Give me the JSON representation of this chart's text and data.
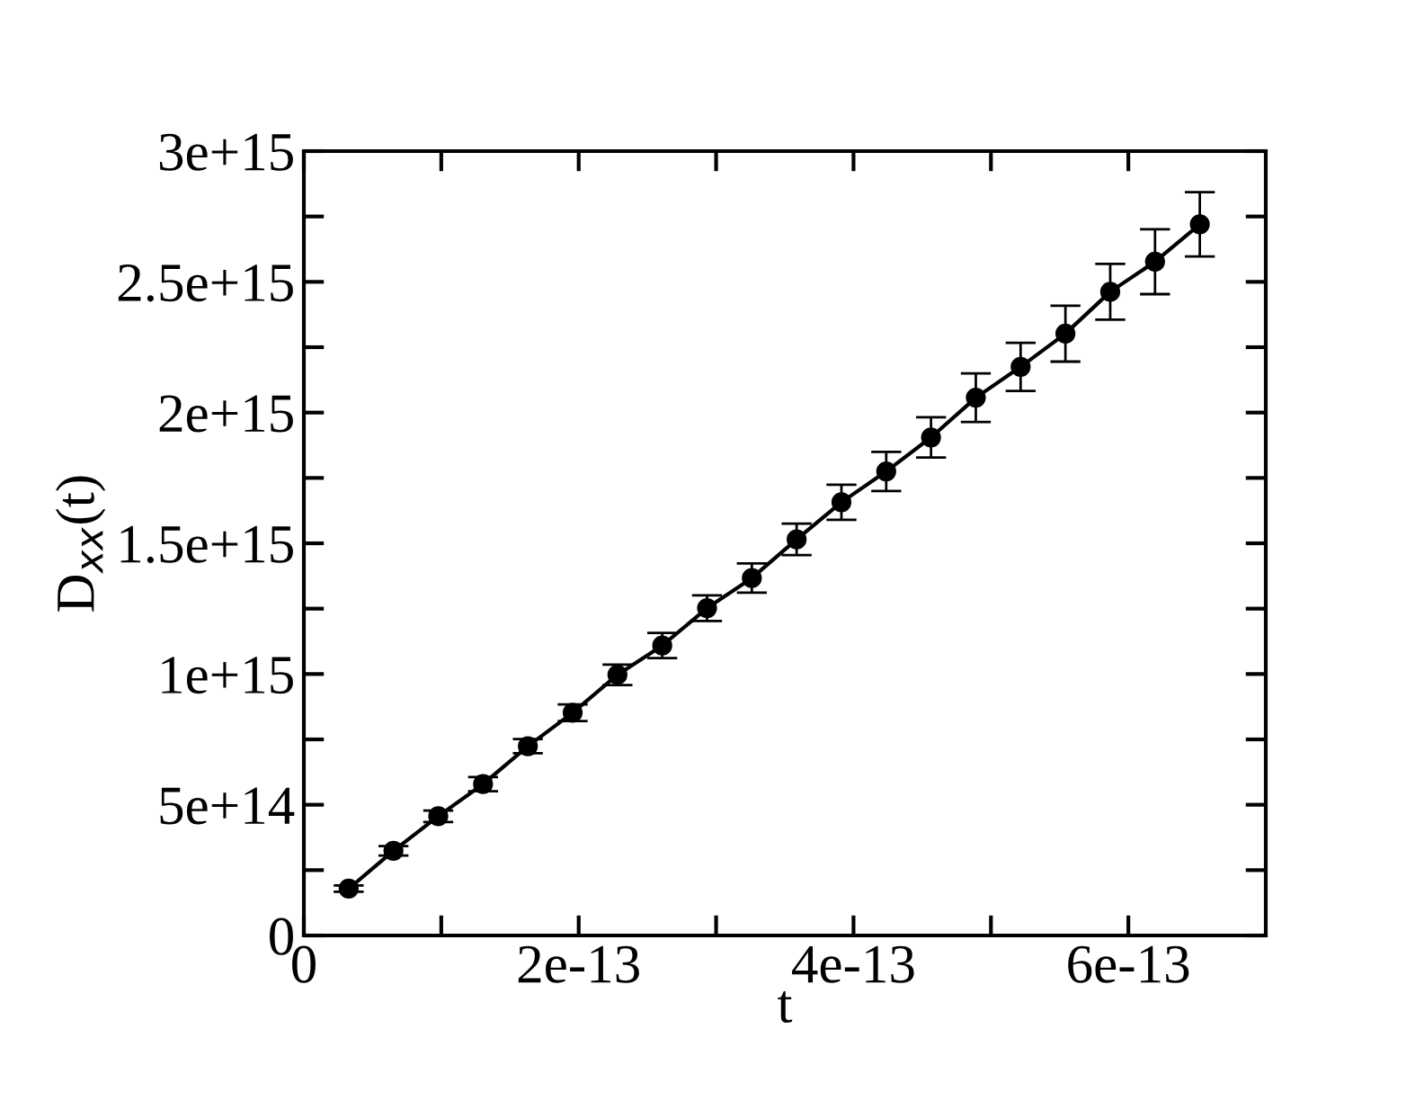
{
  "chart_data": {
    "type": "line",
    "xlabel": "t",
    "ylabel": "D$_{xx}$(t)",
    "x": [
      3.26e-14,
      6.52e-14,
      9.78e-14,
      1.304e-13,
      1.63e-13,
      1.956e-13,
      2.282e-13,
      2.608e-13,
      2.934e-13,
      3.26e-13,
      3.586e-13,
      3.912e-13,
      4.238e-13,
      4.564e-13,
      4.89e-13,
      5.216e-13,
      5.542e-13,
      5.868e-13,
      6.194e-13,
      6.52e-13
    ],
    "series": [
      {
        "color": "#000000",
        "values": [
          179000000000000.0,
          324000000000000.0,
          456000000000000.0,
          579000000000000.0,
          724000000000000.0,
          852000000000000.0,
          997000000000000.0,
          1109000000000000.0,
          1252000000000000.0,
          1367000000000000.0,
          1515000000000000.0,
          1657000000000000.0,
          1775000000000000.0,
          1905000000000000.0,
          2057000000000000.0,
          2175000000000000.0,
          2302000000000000.0,
          2462000000000000.0,
          2577000000000000.0,
          2720000000000000.0
        ],
        "errors": [
          12000000000000.0,
          18000000000000.0,
          22000000000000.0,
          27000000000000.0,
          27000000000000.0,
          32000000000000.0,
          39000000000000.0,
          48000000000000.0,
          49000000000000.0,
          56000000000000.0,
          60000000000000.0,
          67000000000000.0,
          75000000000000.0,
          77000000000000.0,
          93000000000000.0,
          92000000000000.0,
          107000000000000.0,
          107000000000000.0,
          124000000000000.0,
          123000000000000.0
        ]
      }
    ],
    "xlim": [
      0,
      7e-13
    ],
    "xticks": [
      {
        "value": 0,
        "label": "0"
      },
      {
        "value": 1e-13,
        "label": null
      },
      {
        "value": 2e-13,
        "label": "2e-13"
      },
      {
        "value": 3e-13,
        "label": null
      },
      {
        "value": 4e-13,
        "label": "4e-13"
      },
      {
        "value": 5e-13,
        "label": null
      },
      {
        "value": 6e-13,
        "label": "6e-13"
      }
    ],
    "ylim": [
      0,
      3000000000000000.0
    ],
    "yticks": [
      {
        "value": 0,
        "label": "0"
      },
      {
        "value": 250000000000000.0,
        "label": null
      },
      {
        "value": 500000000000000.0,
        "label": "5e+14"
      },
      {
        "value": 750000000000000.0,
        "label": null
      },
      {
        "value": 1000000000000000.0,
        "label": "1e+15"
      },
      {
        "value": 1250000000000000.0,
        "label": null
      },
      {
        "value": 1500000000000000.0,
        "label": "1.5e+15"
      },
      {
        "value": 1750000000000000.0,
        "label": null
      },
      {
        "value": 2000000000000000.0,
        "label": "2e+15"
      },
      {
        "value": 2250000000000000.0,
        "label": null
      },
      {
        "value": 2500000000000000.0,
        "label": "2.5e+15"
      },
      {
        "value": 2750000000000000.0,
        "label": null
      },
      {
        "value": 3000000000000000.0,
        "label": "3e+15"
      }
    ],
    "marker": "circle",
    "line_style": "solid",
    "grid": false,
    "legend": false
  }
}
